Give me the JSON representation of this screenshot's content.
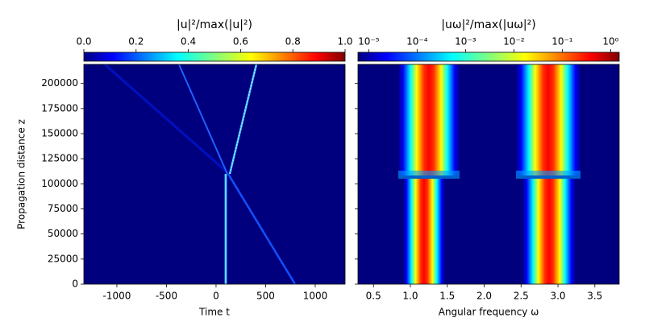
{
  "chart_data": [
    {
      "type": "heatmap",
      "title": "|u|²/max(|u|²)",
      "xlabel": "Time t",
      "ylabel": "Propagation distance z",
      "xlim": [
        -1333,
        1301
      ],
      "xticks": [
        -1000,
        -500,
        0,
        500,
        1000
      ],
      "ylim": [
        0,
        219000
      ],
      "yticks": [
        0,
        25000,
        50000,
        75000,
        100000,
        125000,
        150000,
        175000,
        200000
      ],
      "colormap": "jet",
      "colorbar": {
        "scale": "linear",
        "lim": [
          0,
          1
        ],
        "ticks": [
          {
            "value": 0,
            "label": "0.0"
          },
          0.2,
          0.4,
          0.6,
          0.8,
          {
            "value": 1,
            "label": "1.0"
          }
        ]
      }
    },
    {
      "type": "heatmap",
      "title": "|uω|²/max(|uω|²)",
      "xlabel": "Angular frequency ω",
      "xlim": [
        0.29,
        3.83
      ],
      "xticks": [
        0.5,
        {
          "value": 1,
          "label": "1.0"
        },
        1.5,
        {
          "value": 2,
          "label": "2.0"
        },
        2.5,
        {
          "value": 3,
          "label": "3.0"
        },
        3.5
      ],
      "ylim": [
        0,
        219000
      ],
      "colormap": "jet",
      "colorbar": {
        "scale": "log",
        "lim": [
          6e-06,
          1.5
        ],
        "ticks": [
          {
            "value": 1e-05,
            "label": "10⁻⁵"
          },
          {
            "value": 0.0001,
            "label": "10⁻⁴"
          },
          {
            "value": 0.001,
            "label": "10⁻³"
          },
          {
            "value": 0.01,
            "label": "10⁻²"
          },
          {
            "value": 0.1,
            "label": "10⁻¹"
          },
          {
            "value": 1,
            "label": "10⁰"
          }
        ]
      }
    }
  ]
}
